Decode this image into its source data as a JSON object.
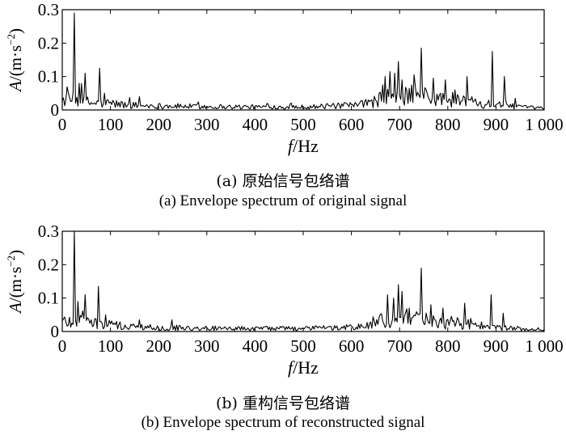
{
  "chart_data": [
    {
      "type": "line",
      "x_range": [
        0,
        1000
      ],
      "ylim": [
        0,
        0.3
      ],
      "x_ticks": [
        "0",
        "100",
        "200",
        "300",
        "400",
        "500",
        "600",
        "700",
        "800",
        "900",
        "1 000"
      ],
      "y_ticks": [
        "0",
        "0.1",
        "0.2",
        "0.3"
      ],
      "xlabel": {
        "var": "f",
        "unit": "Hz"
      },
      "ylabel": {
        "var": "A",
        "unit": "(m·s",
        "exp": "−2",
        "close": ")"
      },
      "caption_cn": "(a) 原始信号包络谱",
      "caption_en": "(a) Envelope spectrum of original signal",
      "color": "#000000",
      "baseline": [
        [
          0,
          0.03
        ],
        [
          40,
          0.03
        ],
        [
          60,
          0.02
        ],
        [
          100,
          0.02
        ],
        [
          130,
          0.015
        ],
        [
          200,
          0.012
        ],
        [
          300,
          0.01
        ],
        [
          400,
          0.009
        ],
        [
          500,
          0.009
        ],
        [
          600,
          0.013
        ],
        [
          640,
          0.02
        ],
        [
          660,
          0.035
        ],
        [
          720,
          0.045
        ],
        [
          780,
          0.035
        ],
        [
          850,
          0.025
        ],
        [
          900,
          0.015
        ],
        [
          960,
          0.008
        ],
        [
          1000,
          0.005
        ]
      ],
      "peaks": [
        {
          "x": 26,
          "y": 0.29
        },
        {
          "x": 35,
          "y": 0.08
        },
        {
          "x": 47,
          "y": 0.11
        },
        {
          "x": 78,
          "y": 0.125
        },
        {
          "x": 88,
          "y": 0.05
        },
        {
          "x": 160,
          "y": 0.04
        },
        {
          "x": 665,
          "y": 0.075
        },
        {
          "x": 680,
          "y": 0.115
        },
        {
          "x": 690,
          "y": 0.11
        },
        {
          "x": 697,
          "y": 0.145
        },
        {
          "x": 705,
          "y": 0.09
        },
        {
          "x": 725,
          "y": 0.075
        },
        {
          "x": 745,
          "y": 0.185
        },
        {
          "x": 770,
          "y": 0.095
        },
        {
          "x": 795,
          "y": 0.09
        },
        {
          "x": 815,
          "y": 0.06
        },
        {
          "x": 840,
          "y": 0.1
        },
        {
          "x": 893,
          "y": 0.175
        },
        {
          "x": 918,
          "y": 0.1
        },
        {
          "x": 940,
          "y": 0.035
        }
      ]
    },
    {
      "type": "line",
      "x_range": [
        0,
        1000
      ],
      "ylim": [
        0,
        0.3
      ],
      "x_ticks": [
        "0",
        "100",
        "200",
        "300",
        "400",
        "500",
        "600",
        "700",
        "800",
        "900",
        "1 000"
      ],
      "y_ticks": [
        "0",
        "0.1",
        "0.2",
        "0.3"
      ],
      "xlabel": {
        "var": "f",
        "unit": "Hz"
      },
      "ylabel": {
        "var": "A",
        "unit": "(m·s",
        "exp": "−2",
        "close": ")"
      },
      "caption_cn": "(b) 重构信号包络谱",
      "caption_en": "(b) Envelope spectrum of reconstructed signal",
      "color": "#000000",
      "baseline": [
        [
          0,
          0.03
        ],
        [
          40,
          0.035
        ],
        [
          60,
          0.025
        ],
        [
          100,
          0.02
        ],
        [
          130,
          0.015
        ],
        [
          200,
          0.012
        ],
        [
          300,
          0.01
        ],
        [
          400,
          0.009
        ],
        [
          500,
          0.009
        ],
        [
          600,
          0.012
        ],
        [
          640,
          0.02
        ],
        [
          660,
          0.03
        ],
        [
          720,
          0.04
        ],
        [
          780,
          0.03
        ],
        [
          850,
          0.02
        ],
        [
          900,
          0.012
        ],
        [
          960,
          0.006
        ],
        [
          1000,
          0.004
        ]
      ],
      "peaks": [
        {
          "x": 26,
          "y": 0.3
        },
        {
          "x": 33,
          "y": 0.09
        },
        {
          "x": 48,
          "y": 0.11
        },
        {
          "x": 75,
          "y": 0.135
        },
        {
          "x": 90,
          "y": 0.05
        },
        {
          "x": 160,
          "y": 0.035
        },
        {
          "x": 228,
          "y": 0.035
        },
        {
          "x": 675,
          "y": 0.11
        },
        {
          "x": 688,
          "y": 0.1
        },
        {
          "x": 697,
          "y": 0.14
        },
        {
          "x": 705,
          "y": 0.12
        },
        {
          "x": 720,
          "y": 0.07
        },
        {
          "x": 745,
          "y": 0.19
        },
        {
          "x": 765,
          "y": 0.08
        },
        {
          "x": 790,
          "y": 0.07
        },
        {
          "x": 835,
          "y": 0.085
        },
        {
          "x": 890,
          "y": 0.11
        },
        {
          "x": 915,
          "y": 0.055
        }
      ]
    }
  ]
}
